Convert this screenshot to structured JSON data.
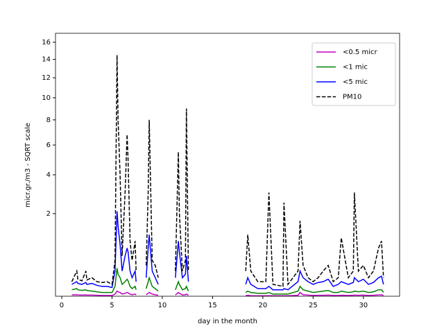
{
  "chart_data": {
    "type": "line",
    "xlabel": "day in the month",
    "ylabel": "micr.gr./m3 - SQRT scale",
    "yscale": "sqrt",
    "xlim": [
      -0.62,
      33.6
    ],
    "xticks": [
      0,
      5,
      10,
      15,
      20,
      25,
      30
    ],
    "ylim": [
      0.028,
      17.1
    ],
    "yticks": [
      2,
      4,
      6,
      8,
      10,
      12,
      14,
      16
    ],
    "legend": "upper right",
    "x": [
      1.0,
      1.5,
      1.6,
      2.0,
      2.4,
      2.5,
      3.0,
      3.5,
      4.0,
      4.5,
      5.0,
      5.3,
      5.5,
      5.6,
      5.8,
      6.0,
      6.3,
      6.5,
      6.6,
      6.8,
      7.0,
      7.3,
      7.4,
      7.8,
      8.4,
      8.6,
      8.7,
      9.0,
      9.3,
      9.6,
      10.5,
      11.3,
      11.6,
      11.7,
      12.0,
      12.3,
      12.4,
      12.6,
      13.5,
      18.3,
      18.5,
      18.8,
      19.5,
      20.3,
      20.6,
      21.0,
      22.0,
      22.1,
      22.5,
      23.5,
      23.7,
      24.0,
      24.5,
      25.0,
      25.5,
      26.0,
      26.5,
      27.0,
      27.5,
      27.8,
      28.5,
      29.0,
      29.1,
      29.5,
      30.0,
      30.5,
      31.0,
      31.5,
      31.8,
      32.0
    ],
    "series": [
      {
        "name": "<0.5 micr",
        "color": "#bf00bf",
        "dash": false,
        "values": [
          0.035,
          0.036,
          0.035,
          0.034,
          0.035,
          0.034,
          0.034,
          0.033,
          0.032,
          0.032,
          0.032,
          0.04,
          0.06,
          0.055,
          0.05,
          0.04,
          0.045,
          0.05,
          0.048,
          0.04,
          0.036,
          0.04,
          0.035,
          null,
          0.036,
          0.045,
          0.05,
          0.04,
          0.036,
          0.033,
          null,
          0.035,
          0.05,
          0.045,
          0.035,
          0.036,
          0.04,
          0.033,
          null,
          0.031,
          0.033,
          0.031,
          0.03,
          0.03,
          0.031,
          0.03,
          0.03,
          0.03,
          0.03,
          0.033,
          0.05,
          0.036,
          0.034,
          0.032,
          0.033,
          0.033,
          0.034,
          0.032,
          0.032,
          0.033,
          0.032,
          0.033,
          0.034,
          0.033,
          0.034,
          0.032,
          0.033,
          0.035,
          0.036,
          0.032
        ]
      },
      {
        "name": "<1 mic",
        "color": "#008000",
        "dash": false,
        "values": [
          0.07,
          0.08,
          0.07,
          0.065,
          0.07,
          0.065,
          0.06,
          0.055,
          0.05,
          0.05,
          0.05,
          0.1,
          0.35,
          0.25,
          0.2,
          0.12,
          0.15,
          0.18,
          0.16,
          0.1,
          0.08,
          0.1,
          0.07,
          null,
          0.08,
          0.15,
          0.2,
          0.1,
          0.08,
          0.06,
          null,
          0.07,
          0.15,
          0.12,
          0.07,
          0.08,
          0.1,
          0.06,
          null,
          0.05,
          0.06,
          0.05,
          0.045,
          0.045,
          0.05,
          0.04,
          0.04,
          0.04,
          0.04,
          0.06,
          0.1,
          0.07,
          0.06,
          0.05,
          0.055,
          0.06,
          0.065,
          0.05,
          0.05,
          0.06,
          0.05,
          0.055,
          0.06,
          0.055,
          0.06,
          0.05,
          0.055,
          0.07,
          0.07,
          0.05
        ]
      },
      {
        "name": "<5 mic",
        "color": "#0000ff",
        "dash": false,
        "values": [
          0.12,
          0.15,
          0.13,
          0.12,
          0.14,
          0.12,
          0.13,
          0.11,
          0.1,
          0.1,
          0.09,
          0.3,
          2.1,
          1.5,
          0.9,
          0.3,
          0.6,
          0.8,
          0.7,
          0.3,
          0.2,
          0.3,
          0.15,
          null,
          0.2,
          0.8,
          1.2,
          0.3,
          0.2,
          0.12,
          null,
          0.2,
          1,
          0.7,
          0.2,
          0.25,
          0.6,
          0.15,
          null,
          0.12,
          0.2,
          0.12,
          0.08,
          0.08,
          0.1,
          0.07,
          0.07,
          0.08,
          0.07,
          0.15,
          0.3,
          0.2,
          0.15,
          0.12,
          0.14,
          0.15,
          0.18,
          0.1,
          0.12,
          0.15,
          0.12,
          0.14,
          0.2,
          0.15,
          0.18,
          0.12,
          0.14,
          0.2,
          0.22,
          0.12
        ]
      },
      {
        "name": "PM10",
        "color": "#000000",
        "dash": true,
        "values": [
          0.15,
          0.3,
          0.18,
          0.16,
          0.3,
          0.17,
          0.2,
          0.15,
          0.14,
          0.15,
          0.12,
          0.5,
          14.5,
          8,
          4,
          0.6,
          3,
          6.8,
          5,
          1,
          0.5,
          1,
          0.3,
          null,
          0.4,
          3,
          8,
          0.5,
          0.4,
          0.2,
          null,
          0.3,
          5.5,
          2,
          0.3,
          0.5,
          9,
          0.3,
          null,
          0.3,
          1.2,
          0.3,
          0.15,
          0.15,
          3,
          0.12,
          0.1,
          2.5,
          0.12,
          0.3,
          1.7,
          0.4,
          0.2,
          0.15,
          0.2,
          0.3,
          0.4,
          0.15,
          0.2,
          1.1,
          0.2,
          0.3,
          3,
          0.3,
          0.4,
          0.2,
          0.3,
          0.8,
          1,
          0.2
        ]
      }
    ]
  }
}
